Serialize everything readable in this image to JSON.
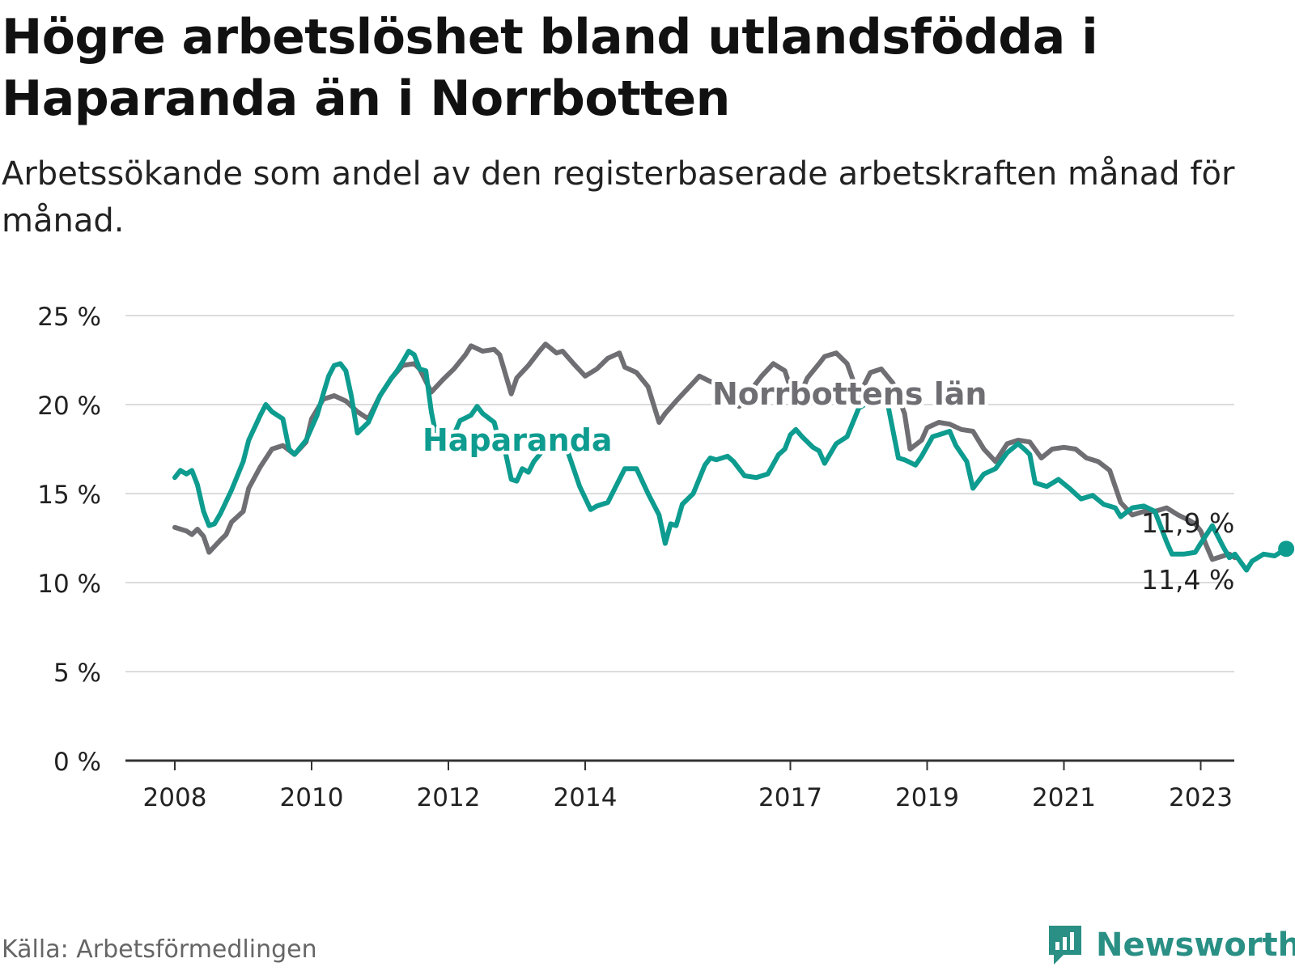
{
  "header": {
    "title": "Högre arbetslöshet bland utlandsfödda i Haparanda än i Norrbotten",
    "subtitle": "Arbetssökande som andel av den registerbaserade arbetskraften månad för månad."
  },
  "footer": {
    "source": "Källa: Arbetsförmedlingen",
    "brand": "Newsworthy"
  },
  "chart_data": {
    "type": "line",
    "title": "Högre arbetslöshet bland utlandsfödda i Haparanda än i Norrbotten",
    "xlabel": "",
    "ylabel": "",
    "xlim": [
      2008.0,
      2023.5
    ],
    "ylim": [
      0,
      25
    ],
    "y_ticks": [
      0,
      5,
      10,
      15,
      20,
      25
    ],
    "y_tick_labels": [
      "0 %",
      "5 %",
      "10 %",
      "15 %",
      "20 %",
      "25 %"
    ],
    "x_ticks": [
      2008,
      2010,
      2012,
      2014,
      2017,
      2019,
      2021,
      2023
    ],
    "x_tick_labels": [
      "2008",
      "2010",
      "2012",
      "2014",
      "2017",
      "2019",
      "2021",
      "2023"
    ],
    "grid": true,
    "series": [
      {
        "name": "Norrbottens län",
        "color": "#6e6e73",
        "points": [
          [
            2008.0,
            13.1
          ],
          [
            2008.17,
            12.9
          ],
          [
            2008.25,
            12.7
          ],
          [
            2008.33,
            13.0
          ],
          [
            2008.42,
            12.6
          ],
          [
            2008.5,
            11.7
          ],
          [
            2008.67,
            12.4
          ],
          [
            2008.75,
            12.7
          ],
          [
            2008.83,
            13.4
          ],
          [
            2009.0,
            14.0
          ],
          [
            2009.08,
            15.3
          ],
          [
            2009.25,
            16.5
          ],
          [
            2009.42,
            17.5
          ],
          [
            2009.58,
            17.7
          ],
          [
            2009.75,
            17.2
          ],
          [
            2009.92,
            17.9
          ],
          [
            2010.0,
            19.2
          ],
          [
            2010.17,
            20.3
          ],
          [
            2010.33,
            20.5
          ],
          [
            2010.5,
            20.2
          ],
          [
            2010.67,
            19.6
          ],
          [
            2010.83,
            19.2
          ],
          [
            2011.0,
            20.5
          ],
          [
            2011.17,
            21.5
          ],
          [
            2011.33,
            22.2
          ],
          [
            2011.5,
            22.3
          ],
          [
            2011.58,
            22.0
          ],
          [
            2011.75,
            20.7
          ],
          [
            2011.92,
            21.4
          ],
          [
            2012.08,
            22.0
          ],
          [
            2012.25,
            22.8
          ],
          [
            2012.33,
            23.3
          ],
          [
            2012.5,
            23.0
          ],
          [
            2012.67,
            23.1
          ],
          [
            2012.75,
            22.8
          ],
          [
            2012.92,
            20.6
          ],
          [
            2013.0,
            21.5
          ],
          [
            2013.17,
            22.2
          ],
          [
            2013.33,
            23.0
          ],
          [
            2013.42,
            23.4
          ],
          [
            2013.58,
            22.9
          ],
          [
            2013.67,
            23.0
          ],
          [
            2013.83,
            22.3
          ],
          [
            2014.0,
            21.6
          ],
          [
            2014.17,
            22.0
          ],
          [
            2014.33,
            22.6
          ],
          [
            2014.5,
            22.9
          ],
          [
            2014.58,
            22.1
          ],
          [
            2014.75,
            21.8
          ],
          [
            2014.92,
            21.0
          ],
          [
            2015.08,
            19.0
          ],
          [
            2015.17,
            19.5
          ],
          [
            2015.33,
            20.2
          ],
          [
            2015.5,
            20.9
          ],
          [
            2015.67,
            21.6
          ],
          [
            2015.83,
            21.3
          ],
          [
            2016.0,
            21.0
          ],
          [
            2016.17,
            21.0
          ],
          [
            2016.25,
            19.9
          ],
          [
            2016.42,
            20.8
          ],
          [
            2016.58,
            21.6
          ],
          [
            2016.75,
            22.3
          ],
          [
            2016.92,
            21.9
          ],
          [
            2017.08,
            20.0
          ],
          [
            2017.25,
            21.5
          ],
          [
            2017.42,
            22.3
          ],
          [
            2017.5,
            22.7
          ],
          [
            2017.67,
            22.9
          ],
          [
            2017.83,
            22.3
          ],
          [
            2018.0,
            20.5
          ],
          [
            2018.17,
            21.8
          ],
          [
            2018.33,
            22.0
          ],
          [
            2018.5,
            21.2
          ],
          [
            2018.67,
            19.5
          ],
          [
            2018.75,
            17.5
          ],
          [
            2018.92,
            18.0
          ],
          [
            2019.0,
            18.7
          ],
          [
            2019.17,
            19.0
          ],
          [
            2019.33,
            18.9
          ],
          [
            2019.5,
            18.6
          ],
          [
            2019.67,
            18.5
          ],
          [
            2019.83,
            17.5
          ],
          [
            2020.0,
            16.8
          ],
          [
            2020.17,
            17.8
          ],
          [
            2020.33,
            18.0
          ],
          [
            2020.5,
            17.9
          ],
          [
            2020.67,
            17.0
          ],
          [
            2020.83,
            17.5
          ],
          [
            2021.0,
            17.6
          ],
          [
            2021.17,
            17.5
          ],
          [
            2021.33,
            17.0
          ],
          [
            2021.5,
            16.8
          ],
          [
            2021.67,
            16.3
          ],
          [
            2021.83,
            14.5
          ],
          [
            2022.0,
            13.8
          ],
          [
            2022.17,
            14.0
          ],
          [
            2022.33,
            14.0
          ],
          [
            2022.5,
            14.2
          ],
          [
            2022.67,
            13.8
          ],
          [
            2022.83,
            13.5
          ],
          [
            2022.92,
            13.3
          ],
          [
            2023.0,
            12.9
          ],
          [
            2023.08,
            12.1
          ],
          [
            2023.17,
            11.3
          ],
          [
            2023.33,
            11.5
          ],
          [
            2023.42,
            11.6
          ],
          [
            2023.5,
            11.4
          ]
        ],
        "label": "Norrbottens län",
        "end_label": "11,4 %"
      },
      {
        "name": "Haparanda",
        "color": "#0d9c8f",
        "points": [
          [
            2008.0,
            15.9
          ],
          [
            2008.08,
            16.3
          ],
          [
            2008.17,
            16.1
          ],
          [
            2008.25,
            16.3
          ],
          [
            2008.33,
            15.5
          ],
          [
            2008.42,
            14.0
          ],
          [
            2008.5,
            13.2
          ],
          [
            2008.58,
            13.3
          ],
          [
            2008.67,
            13.9
          ],
          [
            2008.83,
            15.2
          ],
          [
            2009.0,
            16.8
          ],
          [
            2009.08,
            18.0
          ],
          [
            2009.25,
            19.4
          ],
          [
            2009.33,
            20.0
          ],
          [
            2009.42,
            19.6
          ],
          [
            2009.58,
            19.2
          ],
          [
            2009.67,
            17.5
          ],
          [
            2009.75,
            17.2
          ],
          [
            2009.92,
            18.0
          ],
          [
            2010.08,
            19.4
          ],
          [
            2010.17,
            20.6
          ],
          [
            2010.25,
            21.6
          ],
          [
            2010.33,
            22.2
          ],
          [
            2010.42,
            22.3
          ],
          [
            2010.5,
            21.9
          ],
          [
            2010.58,
            20.5
          ],
          [
            2010.67,
            18.4
          ],
          [
            2010.83,
            19.0
          ],
          [
            2011.0,
            20.5
          ],
          [
            2011.17,
            21.5
          ],
          [
            2011.25,
            21.9
          ],
          [
            2011.33,
            22.4
          ],
          [
            2011.42,
            23.0
          ],
          [
            2011.5,
            22.8
          ],
          [
            2011.58,
            22.0
          ],
          [
            2011.67,
            21.9
          ],
          [
            2011.75,
            19.6
          ],
          [
            2011.83,
            18.1
          ],
          [
            2011.92,
            17.9
          ],
          [
            2012.0,
            17.6
          ],
          [
            2012.17,
            19.1
          ],
          [
            2012.33,
            19.4
          ],
          [
            2012.42,
            19.9
          ],
          [
            2012.5,
            19.5
          ],
          [
            2012.67,
            19.0
          ],
          [
            2012.75,
            17.8
          ],
          [
            2012.83,
            17.4
          ],
          [
            2012.92,
            15.8
          ],
          [
            2013.0,
            15.7
          ],
          [
            2013.08,
            16.4
          ],
          [
            2013.17,
            16.2
          ],
          [
            2013.25,
            16.8
          ],
          [
            2013.42,
            17.6
          ],
          [
            2013.58,
            17.9
          ],
          [
            2013.75,
            17.3
          ],
          [
            2013.92,
            15.4
          ],
          [
            2014.08,
            14.1
          ],
          [
            2014.17,
            14.3
          ],
          [
            2014.33,
            14.5
          ],
          [
            2014.5,
            15.8
          ],
          [
            2014.58,
            16.4
          ],
          [
            2014.75,
            16.4
          ],
          [
            2014.92,
            15.0
          ],
          [
            2015.08,
            13.8
          ],
          [
            2015.17,
            12.2
          ],
          [
            2015.25,
            13.3
          ],
          [
            2015.33,
            13.2
          ],
          [
            2015.42,
            14.4
          ],
          [
            2015.58,
            15.0
          ],
          [
            2015.75,
            16.6
          ],
          [
            2015.83,
            17.0
          ],
          [
            2015.92,
            16.9
          ],
          [
            2016.08,
            17.1
          ],
          [
            2016.17,
            16.8
          ],
          [
            2016.33,
            16.0
          ],
          [
            2016.5,
            15.9
          ],
          [
            2016.67,
            16.1
          ],
          [
            2016.83,
            17.2
          ],
          [
            2016.92,
            17.5
          ],
          [
            2017.0,
            18.3
          ],
          [
            2017.08,
            18.6
          ],
          [
            2017.17,
            18.2
          ],
          [
            2017.33,
            17.6
          ],
          [
            2017.42,
            17.4
          ],
          [
            2017.5,
            16.7
          ],
          [
            2017.67,
            17.8
          ],
          [
            2017.83,
            18.2
          ],
          [
            2018.0,
            19.8
          ],
          [
            2018.17,
            20.2
          ],
          [
            2018.33,
            20.2
          ],
          [
            2018.42,
            20.1
          ],
          [
            2018.58,
            17.0
          ],
          [
            2018.67,
            16.9
          ],
          [
            2018.83,
            16.6
          ],
          [
            2018.92,
            17.1
          ],
          [
            2019.08,
            18.2
          ],
          [
            2019.17,
            18.3
          ],
          [
            2019.33,
            18.5
          ],
          [
            2019.42,
            17.7
          ],
          [
            2019.58,
            16.8
          ],
          [
            2019.67,
            15.3
          ],
          [
            2019.83,
            16.1
          ],
          [
            2020.0,
            16.4
          ],
          [
            2020.17,
            17.3
          ],
          [
            2020.33,
            17.8
          ],
          [
            2020.42,
            17.5
          ],
          [
            2020.5,
            17.2
          ],
          [
            2020.58,
            15.6
          ],
          [
            2020.75,
            15.4
          ],
          [
            2020.92,
            15.8
          ],
          [
            2021.08,
            15.3
          ],
          [
            2021.25,
            14.7
          ],
          [
            2021.42,
            14.9
          ],
          [
            2021.58,
            14.4
          ],
          [
            2021.75,
            14.2
          ],
          [
            2021.83,
            13.7
          ],
          [
            2022.0,
            14.2
          ],
          [
            2022.17,
            14.3
          ],
          [
            2022.33,
            14.0
          ],
          [
            2022.5,
            12.3
          ],
          [
            2022.58,
            11.6
          ],
          [
            2022.75,
            11.6
          ],
          [
            2022.92,
            11.7
          ],
          [
            2023.0,
            12.2
          ],
          [
            2023.17,
            13.2
          ],
          [
            2023.33,
            12.0
          ],
          [
            2023.42,
            11.4
          ],
          [
            2023.5,
            11.6
          ],
          [
            2023.67,
            10.7
          ],
          [
            2023.75,
            11.2
          ],
          [
            2023.92,
            11.6
          ],
          [
            2024.08,
            11.5
          ],
          [
            2024.25,
            11.9
          ]
        ],
        "label": "Haparanda",
        "end_label": "11,9 %"
      }
    ]
  }
}
